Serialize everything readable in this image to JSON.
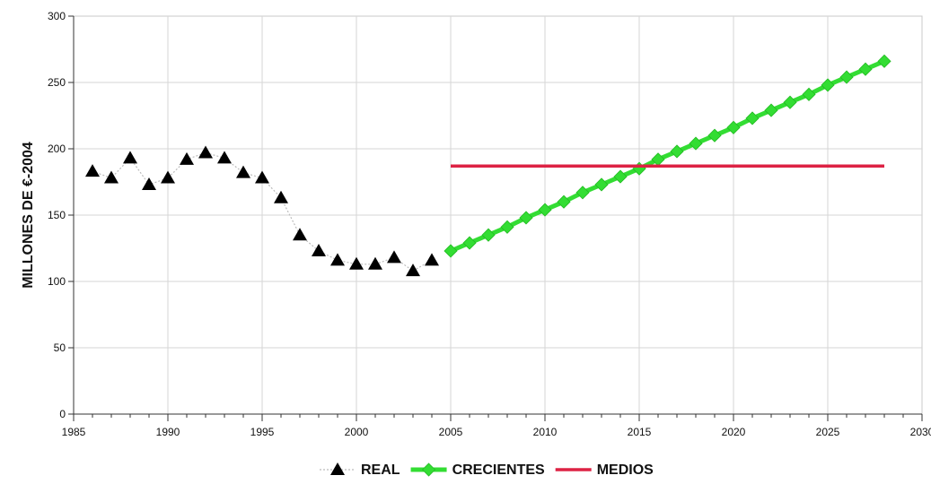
{
  "chart_data": {
    "type": "line",
    "ylabel": "MILLONES DE €-2004",
    "xlim": [
      1985,
      2030
    ],
    "ylim": [
      0,
      300
    ],
    "x_ticks": [
      "1985",
      "1990",
      "1995",
      "2000",
      "2005",
      "2010",
      "2015",
      "2020",
      "2025",
      "2030"
    ],
    "y_ticks": [
      "0",
      "50",
      "100",
      "150",
      "200",
      "250",
      "300"
    ],
    "grid": true,
    "legend_position": "bottom",
    "series": [
      {
        "name": "REAL",
        "color": "#000000",
        "marker": "triangle",
        "x": [
          1986,
          1987,
          1988,
          1989,
          1990,
          1991,
          1992,
          1993,
          1994,
          1995,
          1996,
          1997,
          1998,
          1999,
          2000,
          2001,
          2002,
          2003,
          2004
        ],
        "y": [
          183,
          178,
          193,
          173,
          178,
          192,
          197,
          193,
          182,
          178,
          163,
          135,
          123,
          116,
          113,
          113,
          118,
          108,
          116
        ]
      },
      {
        "name": "CRECIENTES",
        "color": "#33dd33",
        "marker": "diamond",
        "x": [
          2005,
          2006,
          2007,
          2008,
          2009,
          2010,
          2011,
          2012,
          2013,
          2014,
          2015,
          2016,
          2017,
          2018,
          2019,
          2020,
          2021,
          2022,
          2023,
          2024,
          2025,
          2026,
          2027,
          2028
        ],
        "y": [
          123,
          129,
          135,
          141,
          148,
          154,
          160,
          167,
          173,
          179,
          185,
          192,
          198,
          204,
          210,
          216,
          223,
          229,
          235,
          241,
          248,
          254,
          260,
          266
        ]
      },
      {
        "name": "MEDIOS",
        "color": "#dd2244",
        "marker": "none",
        "x": [
          2005,
          2028
        ],
        "y": [
          187,
          187
        ]
      }
    ]
  }
}
